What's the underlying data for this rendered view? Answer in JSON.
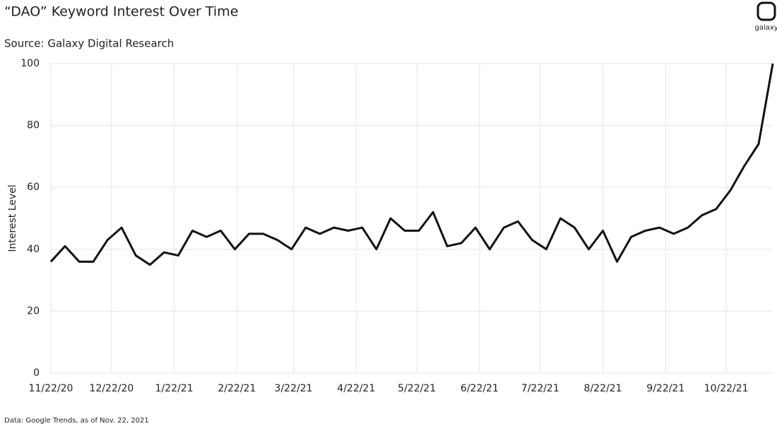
{
  "chart_data": {
    "type": "line",
    "title": "“DAO” Keyword Interest Over Time",
    "subtitle": "Source: Galaxy Digital Research",
    "note": "Data: Google Trends, as of Nov. 22, 2021",
    "logo": "galaxy",
    "y_label": "Interest Level",
    "x": [
      "2020-11-22",
      "2020-11-29",
      "2020-12-06",
      "2020-12-13",
      "2020-12-20",
      "2020-12-27",
      "2021-01-03",
      "2021-01-10",
      "2021-01-17",
      "2021-01-24",
      "2021-01-31",
      "2021-02-07",
      "2021-02-14",
      "2021-02-21",
      "2021-02-28",
      "2021-03-07",
      "2021-03-14",
      "2021-03-21",
      "2021-03-28",
      "2021-04-04",
      "2021-04-11",
      "2021-04-18",
      "2021-04-25",
      "2021-05-02",
      "2021-05-09",
      "2021-05-16",
      "2021-05-23",
      "2021-05-30",
      "2021-06-06",
      "2021-06-13",
      "2021-06-20",
      "2021-06-27",
      "2021-07-04",
      "2021-07-11",
      "2021-07-18",
      "2021-07-25",
      "2021-08-01",
      "2021-08-08",
      "2021-08-15",
      "2021-08-22",
      "2021-08-29",
      "2021-09-05",
      "2021-09-12",
      "2021-09-19",
      "2021-09-26",
      "2021-10-03",
      "2021-10-10",
      "2021-10-17",
      "2021-10-24",
      "2021-10-31",
      "2021-11-07",
      "2021-11-14"
    ],
    "values": [
      36,
      41,
      36,
      36,
      43,
      47,
      38,
      35,
      39,
      38,
      46,
      44,
      46,
      40,
      45,
      45,
      43,
      40,
      47,
      45,
      47,
      46,
      47,
      40,
      50,
      46,
      46,
      52,
      41,
      42,
      47,
      40,
      47,
      49,
      43,
      40,
      50,
      47,
      40,
      46,
      36,
      44,
      46,
      47,
      45,
      47,
      51,
      53,
      59,
      67,
      74,
      100
    ],
    "color": "#111111",
    "xlim": [
      "2020-11-22",
      "2021-11-14"
    ],
    "xticks": [
      {
        "value": "2020-11-22",
        "label": "11/22/20"
      },
      {
        "value": "2020-12-22",
        "label": "12/22/20"
      },
      {
        "value": "2021-01-22",
        "label": "1/22/21"
      },
      {
        "value": "2021-02-22",
        "label": "2/22/21"
      },
      {
        "value": "2021-03-22",
        "label": "3/22/21"
      },
      {
        "value": "2021-04-22",
        "label": "4/22/21"
      },
      {
        "value": "2021-05-22",
        "label": "5/22/21"
      },
      {
        "value": "2021-06-22",
        "label": "6/22/21"
      },
      {
        "value": "2021-07-22",
        "label": "7/22/21"
      },
      {
        "value": "2021-08-22",
        "label": "8/22/21"
      },
      {
        "value": "2021-09-22",
        "label": "9/22/21"
      },
      {
        "value": "2021-10-22",
        "label": "10/22/21"
      }
    ],
    "ylim": [
      0,
      100
    ],
    "yticks": [
      0,
      20,
      40,
      60,
      80,
      100
    ],
    "grid": true
  }
}
